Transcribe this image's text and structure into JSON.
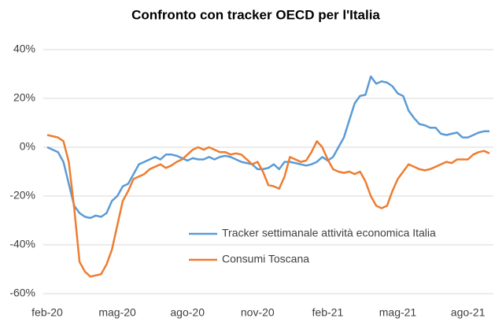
{
  "chart_data": {
    "type": "line",
    "title": "Confronto con tracker OECD per l'Italia",
    "categories": [
      "feb-20",
      null,
      null,
      null,
      null,
      null,
      null,
      null,
      null,
      null,
      null,
      null,
      null,
      "mag-20",
      null,
      null,
      null,
      null,
      null,
      null,
      null,
      null,
      null,
      null,
      null,
      null,
      "ago-20",
      null,
      null,
      null,
      null,
      null,
      null,
      null,
      null,
      null,
      null,
      null,
      null,
      "nov-20",
      null,
      null,
      null,
      null,
      null,
      null,
      null,
      null,
      null,
      null,
      null,
      null,
      "feb-21",
      null,
      null,
      null,
      null,
      null,
      null,
      null,
      null,
      null,
      null,
      null,
      null,
      "mag-21",
      null,
      null,
      null,
      null,
      null,
      null,
      null,
      null,
      null,
      null,
      null,
      null,
      "ago-21",
      null,
      null,
      null,
      null
    ],
    "series": [
      {
        "name": "Tracker settimanale attività economica Italia",
        "color": "#5b9bd5",
        "values": [
          0,
          -1,
          -2,
          -6,
          -15,
          -24,
          -27,
          -28.5,
          -29,
          -28,
          -28.5,
          -27,
          -22,
          -20,
          -16,
          -15,
          -11,
          -7,
          -6,
          -5,
          -4,
          -5,
          -3,
          -3,
          -3.5,
          -4.5,
          -5.5,
          -4.5,
          -5,
          -5,
          -4,
          -5,
          -4,
          -3.5,
          -4,
          -5,
          -6,
          -6.5,
          -7,
          -9,
          -9,
          -8.5,
          -7,
          -9,
          -6,
          -6,
          -6.5,
          -7,
          -7.5,
          -7,
          -6,
          -4,
          -5.5,
          -4,
          0,
          4,
          11,
          18,
          21,
          21.5,
          29,
          26,
          27,
          26.5,
          25,
          22,
          21,
          15,
          12,
          9.5,
          9,
          8,
          8,
          5.5,
          5,
          5.5,
          6,
          4,
          4,
          5,
          6,
          6.5,
          6.5
        ]
      },
      {
        "name": "Consumi Toscana",
        "color": "#ed7d31",
        "values": [
          5,
          4.5,
          4,
          2.5,
          -6,
          -25,
          -47,
          -51,
          -53,
          -52.5,
          -52,
          -48,
          -42,
          -32,
          -22,
          -18,
          -13,
          -12,
          -11,
          -9,
          -8,
          -7,
          -8.5,
          -7.5,
          -6,
          -5,
          -3,
          -1,
          0,
          -1,
          0,
          -1,
          -2,
          -2,
          -3,
          -2.5,
          -3,
          -5,
          -7,
          -6,
          -10,
          -15.5,
          -16,
          -17,
          -12,
          -4,
          -5,
          -6,
          -5.5,
          -2,
          2.5,
          0,
          -5,
          -9,
          -10,
          -10.5,
          -10,
          -11,
          -10,
          -14,
          -20,
          -24,
          -25,
          -24,
          -18,
          -13,
          -10,
          -7,
          -8,
          -9,
          -9.5,
          -9,
          -8,
          -7,
          -6,
          -6.5,
          -5,
          -5,
          -5,
          -3,
          -2,
          -1.5,
          -2.5
        ]
      }
    ],
    "ylim": [
      -60,
      40
    ],
    "yticks": [
      {
        "value": -60,
        "label": "-60%"
      },
      {
        "value": -40,
        "label": "-40%"
      },
      {
        "value": -20,
        "label": "-20%"
      },
      {
        "value": 0,
        "label": "0%"
      },
      {
        "value": 20,
        "label": "20%"
      },
      {
        "value": 40,
        "label": "40%"
      }
    ],
    "grid": true,
    "legend": "lower right"
  }
}
